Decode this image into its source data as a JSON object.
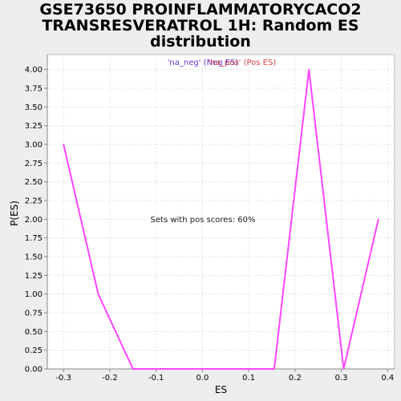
{
  "chart_data": {
    "type": "line",
    "title_lines": [
      "GSE73650 PROINFLAMMATORYCACO2",
      "TRANSRESVERATROL 1H: Random ES",
      "distribution"
    ],
    "xlabel": "ES",
    "ylabel": "P(ES)",
    "xlim": [
      -0.335,
      0.415
    ],
    "ylim": [
      0,
      4.2
    ],
    "x_ticks": [
      -0.3,
      -0.2,
      -0.1,
      0.0,
      0.1,
      0.2,
      0.3,
      0.4
    ],
    "x_tick_labels": [
      "-0.3",
      "-0.2",
      "-0.1",
      "0.0",
      "0.1",
      "0.2",
      "0.3",
      "0.4"
    ],
    "y_ticks": [
      0,
      0.25,
      0.5,
      0.75,
      1.0,
      1.25,
      1.5,
      1.75,
      2.0,
      2.25,
      2.5,
      2.75,
      3.0,
      3.25,
      3.5,
      3.75,
      4.0
    ],
    "y_tick_labels": [
      "0.00",
      "0.25",
      "0.50",
      "0.75",
      "1.00",
      "1.25",
      "1.50",
      "1.75",
      "2.00",
      "2.25",
      "2.50",
      "2.75",
      "3.00",
      "3.25",
      "3.50",
      "3.75",
      "4.00"
    ],
    "grid": true,
    "legend": {
      "placement": "top-center",
      "entries": [
        {
          "label": "'na_neg' (Neg ES)",
          "color": "#6633cc"
        },
        {
          "label": "'na_pos' (Pos ES)",
          "color": "#dd4444"
        }
      ]
    },
    "annotation": "Sets with pos scores: 60%",
    "series": [
      {
        "color": "#ff44ff",
        "x": [
          -0.3,
          -0.225,
          -0.15,
          0.155,
          0.23,
          0.305,
          0.38
        ],
        "y": [
          3.0,
          1.0,
          0.0,
          0.0,
          4.0,
          0.0,
          2.0
        ]
      }
    ]
  }
}
